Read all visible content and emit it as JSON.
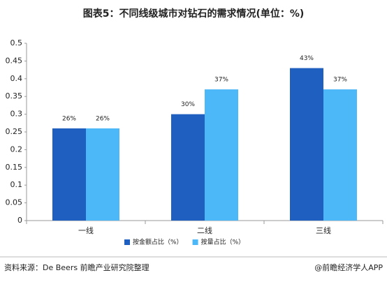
{
  "chart_data": {
    "type": "bar",
    "title": "图表5：不同线级城市对钻石的需求情况(单位：%)",
    "categories": [
      "一线",
      "二线",
      "三线"
    ],
    "series": [
      {
        "name": "按金额占比（%）",
        "color": "#1f5fbf",
        "values": [
          0.26,
          0.3,
          0.43
        ],
        "value_labels": [
          "26%",
          "30%",
          "43%"
        ]
      },
      {
        "name": "按量占比（%）",
        "color": "#4db8f7",
        "values": [
          0.26,
          0.37,
          0.37
        ],
        "value_labels": [
          "26%",
          "37%",
          "37%"
        ]
      }
    ],
    "ylim": [
      0,
      0.5
    ],
    "yticks": [
      0,
      0.05,
      0.1,
      0.15,
      0.2,
      0.25,
      0.3,
      0.35,
      0.4,
      0.45,
      0.5
    ],
    "grid": false,
    "legend": "bottom",
    "source": "资料来源：De Beers 前瞻产业研究院整理",
    "credit": "@前瞻经济学人APP"
  }
}
